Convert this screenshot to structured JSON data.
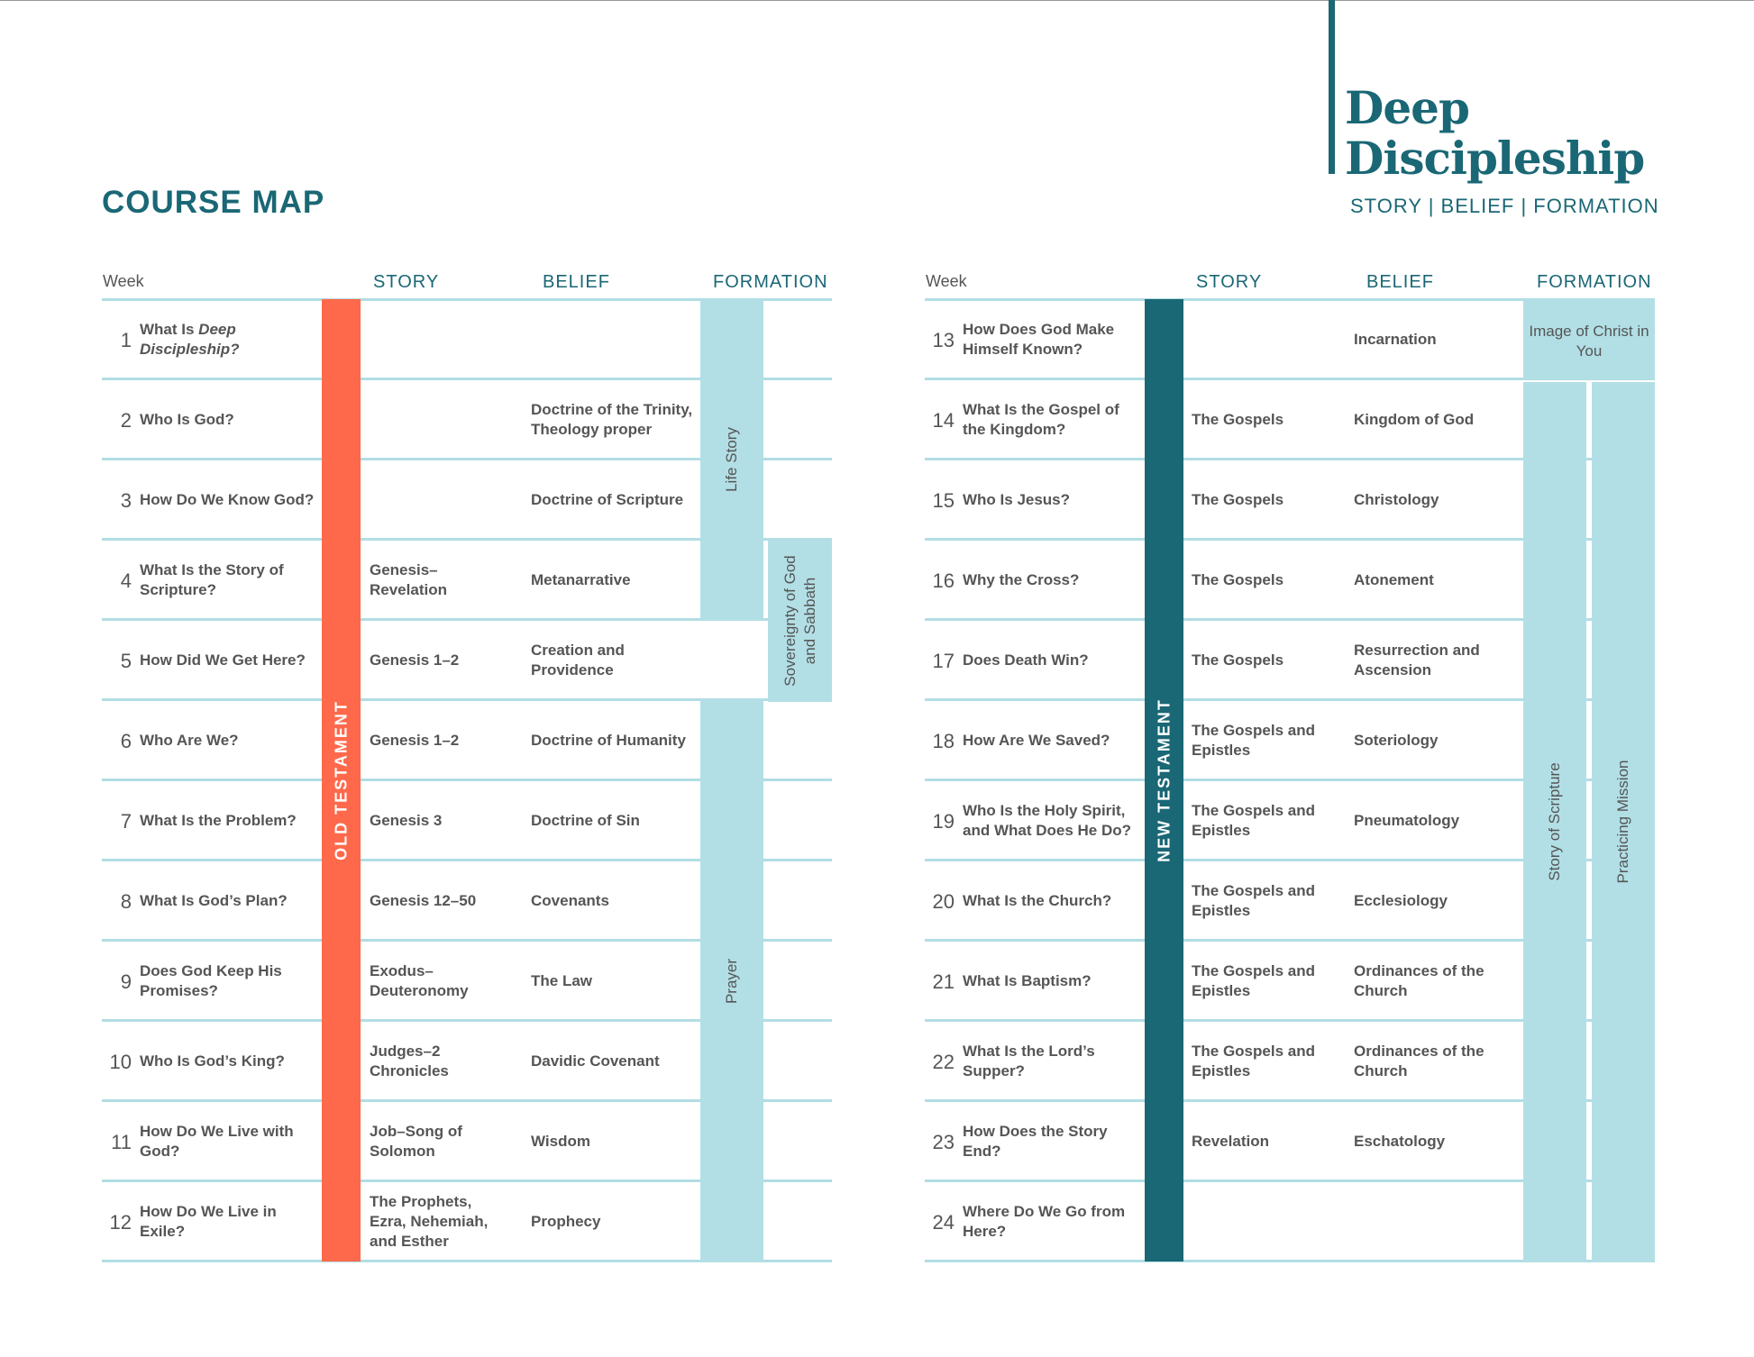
{
  "brand": {
    "title_line1": "Deep",
    "title_line2": "Discipleship",
    "subtitle": "STORY | BELIEF | FORMATION"
  },
  "page_title": "COURSE MAP",
  "headers": {
    "week": "Week",
    "story": "STORY",
    "belief": "BELIEF",
    "formation": "FORMATION"
  },
  "colors": {
    "teal_dark": "#1a6775",
    "teal_light": "#b2dfe5",
    "coral": "#ff694b"
  },
  "left": {
    "testament_label": "OLD TESTAMENT",
    "formation": {
      "life_story": "Life Story",
      "sovereignty": "Sovereignty of God and Sabbath",
      "prayer": "Prayer"
    },
    "weeks": [
      {
        "num": "1",
        "title_a": "What Is ",
        "title_em": "Deep",
        "title_b": "Discipleship?",
        "story": "",
        "belief": ""
      },
      {
        "num": "2",
        "title": "Who Is God?",
        "story": "",
        "belief": "Doctrine of the Trinity, Theology proper"
      },
      {
        "num": "3",
        "title": "How Do We Know God?",
        "story": "",
        "belief": "Doctrine of Scripture"
      },
      {
        "num": "4",
        "title": "What Is the Story of Scripture?",
        "story": "Genesis–Revelation",
        "belief": "Metanarrative"
      },
      {
        "num": "5",
        "title": "How Did We Get Here?",
        "story": "Genesis 1–2",
        "belief": "Creation and Providence"
      },
      {
        "num": "6",
        "title": "Who Are We?",
        "story": "Genesis 1–2",
        "belief": "Doctrine of Humanity"
      },
      {
        "num": "7",
        "title": "What Is the Problem?",
        "story": "Genesis 3",
        "belief": "Doctrine of Sin"
      },
      {
        "num": "8",
        "title": "What Is God’s Plan?",
        "story": "Genesis 12–50",
        "belief": "Covenants"
      },
      {
        "num": "9",
        "title": "Does God Keep His Promises?",
        "story": "Exodus–Deuteronomy",
        "belief": "The Law"
      },
      {
        "num": "10",
        "title": "Who Is God’s King?",
        "story": "Judges–2 Chronicles",
        "belief": "Davidic Covenant"
      },
      {
        "num": "11",
        "title": "How Do We Live with God?",
        "story": "Job–Song of Solomon",
        "belief": "Wisdom"
      },
      {
        "num": "12",
        "title": "How Do We Live in Exile?",
        "story": "The Prophets, Ezra, Nehemiah, and Esther",
        "belief": "Prophecy"
      }
    ]
  },
  "right": {
    "testament_label": "NEW TESTAMENT",
    "formation": {
      "image": "Image of Christ in You",
      "story_of_scripture": "Story of Scripture",
      "practicing_mission": "Practicing Mission"
    },
    "weeks": [
      {
        "num": "13",
        "title": "How Does God Make Himself Known?",
        "story": "",
        "belief": "Incarnation"
      },
      {
        "num": "14",
        "title": "What Is the Gospel of the Kingdom?",
        "story": "The Gospels",
        "belief": "Kingdom of God"
      },
      {
        "num": "15",
        "title": "Who Is Jesus?",
        "story": "The Gospels",
        "belief": "Christology"
      },
      {
        "num": "16",
        "title": "Why the Cross?",
        "story": "The Gospels",
        "belief": "Atonement"
      },
      {
        "num": "17",
        "title": "Does Death Win?",
        "story": "The Gospels",
        "belief": "Resurrection and Ascension"
      },
      {
        "num": "18",
        "title": "How Are We Saved?",
        "story": "The Gospels and Epistles",
        "belief": "Soteriology"
      },
      {
        "num": "19",
        "title": "Who Is the Holy Spirit, and What Does He Do?",
        "story": "The Gospels and Epistles",
        "belief": "Pneumatology"
      },
      {
        "num": "20",
        "title": "What Is the Church?",
        "story": "The Gospels and Epistles",
        "belief": "Ecclesiology"
      },
      {
        "num": "21",
        "title": "What Is Baptism?",
        "story": "The Gospels and Epistles",
        "belief": "Ordinances of the Church"
      },
      {
        "num": "22",
        "title": "What Is the Lord’s Supper?",
        "story": "The Gospels and Epistles",
        "belief": "Ordinances of the Church"
      },
      {
        "num": "23",
        "title": "How Does the Story End?",
        "story": "Revelation",
        "belief": "Eschatology"
      },
      {
        "num": "24",
        "title": "Where Do We Go from Here?",
        "story": "",
        "belief": ""
      }
    ]
  }
}
